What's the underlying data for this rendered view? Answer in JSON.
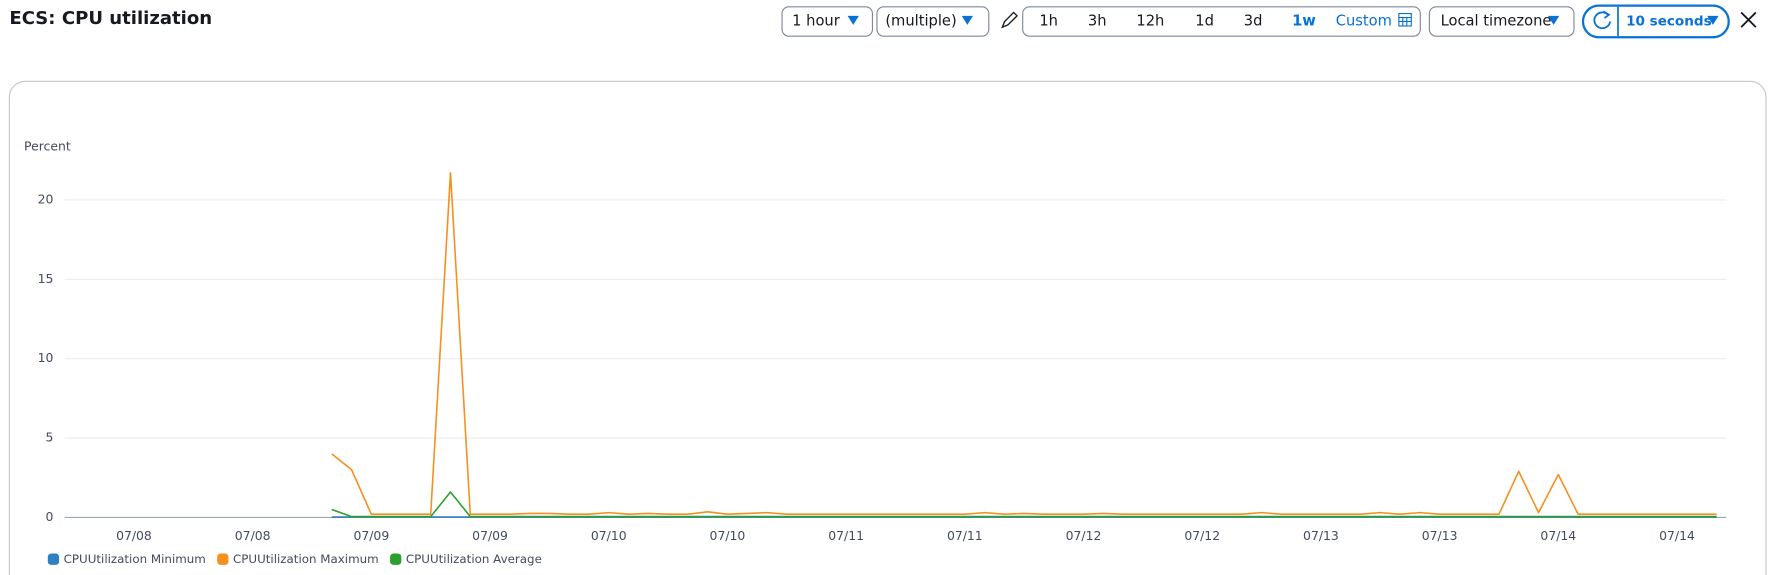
{
  "header": {
    "title": "ECS: CPU utilization",
    "period": "1 hour",
    "statistic": "(multiple)",
    "ranges": [
      "1h",
      "3h",
      "12h",
      "1d",
      "3d",
      "1w"
    ],
    "custom": "Custom",
    "timezone": "Local timezone",
    "refresh": "10 seconds"
  },
  "chart_data": {
    "type": "line",
    "y_label": "Percent",
    "categories": [
      null,
      null,
      null,
      "07/08",
      null,
      null,
      null,
      null,
      null,
      "07/08",
      null,
      null,
      null,
      null,
      null,
      "07/09",
      null,
      null,
      null,
      null,
      null,
      "07/09",
      null,
      null,
      null,
      null,
      null,
      "07/10",
      null,
      null,
      null,
      null,
      null,
      "07/10",
      null,
      null,
      null,
      null,
      null,
      "07/11",
      null,
      null,
      null,
      null,
      null,
      "07/11",
      null,
      null,
      null,
      null,
      null,
      "07/12",
      null,
      null,
      null,
      null,
      null,
      "07/12",
      null,
      null,
      null,
      null,
      null,
      "07/13",
      null,
      null,
      null,
      null,
      null,
      "07/13",
      null,
      null,
      null,
      null,
      null,
      "07/14",
      null,
      null,
      null,
      null,
      null,
      "07/14",
      null,
      null
    ],
    "ylim": [
      0,
      22.5
    ],
    "yticks": [
      0,
      5,
      10,
      15,
      20
    ],
    "grid": true,
    "series": [
      {
        "name": "CPUUtilization Minimum",
        "color": "#2f7fc1",
        "values": [
          null,
          null,
          null,
          null,
          null,
          null,
          null,
          null,
          null,
          null,
          null,
          null,
          null,
          0.02,
          0.02,
          0.02,
          0.02,
          0.02,
          0.02,
          0.02,
          0.02,
          0.02,
          0.02,
          0.02,
          0.02,
          0.02,
          0.02,
          0.02,
          0.02,
          0.02,
          0.02,
          0.02,
          0.02,
          0.02,
          0.02,
          0.02,
          0.02,
          0.02,
          0.02,
          0.02,
          0.02,
          0.02,
          0.02,
          0.02,
          0.02,
          0.02,
          0.02,
          0.02,
          0.02,
          0.02,
          0.02,
          0.02,
          0.02,
          0.02,
          0.02,
          0.02,
          0.02,
          0.02,
          0.02,
          0.02,
          0.02,
          0.02,
          0.02,
          0.02,
          0.02,
          0.02,
          0.02,
          0.02,
          0.02,
          0.02,
          0.02,
          0.02,
          0.02,
          0.02,
          0.02,
          0.02,
          0.02,
          0.02,
          0.02,
          0.02,
          0.02,
          0.02,
          0.02,
          0.02
        ]
      },
      {
        "name": "CPUUtilization Maximum",
        "color": "#f5901e",
        "values": [
          null,
          null,
          null,
          null,
          null,
          null,
          null,
          null,
          null,
          null,
          null,
          null,
          null,
          4.0,
          3.0,
          0.2,
          0.2,
          0.2,
          0.2,
          21.7,
          0.2,
          0.2,
          0.2,
          0.25,
          0.25,
          0.2,
          0.2,
          0.3,
          0.2,
          0.25,
          0.2,
          0.2,
          0.35,
          0.2,
          0.25,
          0.3,
          0.2,
          0.2,
          0.2,
          0.2,
          0.2,
          0.2,
          0.2,
          0.2,
          0.2,
          0.2,
          0.3,
          0.2,
          0.25,
          0.2,
          0.2,
          0.2,
          0.25,
          0.2,
          0.2,
          0.2,
          0.2,
          0.2,
          0.2,
          0.2,
          0.3,
          0.2,
          0.2,
          0.2,
          0.2,
          0.2,
          0.3,
          0.2,
          0.3,
          0.2,
          0.2,
          0.2,
          0.2,
          2.9,
          0.3,
          2.7,
          0.2,
          0.2,
          0.2,
          0.2,
          0.2,
          0.2,
          0.2,
          0.2
        ]
      },
      {
        "name": "CPUUtilization Average",
        "color": "#2ca02c",
        "values": [
          null,
          null,
          null,
          null,
          null,
          null,
          null,
          null,
          null,
          null,
          null,
          null,
          null,
          0.5,
          0.05,
          0.05,
          0.05,
          0.05,
          0.05,
          1.6,
          0.05,
          0.05,
          0.05,
          0.05,
          0.05,
          0.05,
          0.05,
          0.05,
          0.05,
          0.05,
          0.05,
          0.05,
          0.05,
          0.05,
          0.05,
          0.05,
          0.05,
          0.05,
          0.05,
          0.05,
          0.05,
          0.05,
          0.05,
          0.05,
          0.05,
          0.05,
          0.05,
          0.05,
          0.05,
          0.05,
          0.05,
          0.05,
          0.05,
          0.05,
          0.05,
          0.05,
          0.05,
          0.05,
          0.05,
          0.05,
          0.05,
          0.05,
          0.05,
          0.05,
          0.05,
          0.05,
          0.05,
          0.05,
          0.05,
          0.05,
          0.05,
          0.05,
          0.05,
          0.05,
          0.05,
          0.05,
          0.05,
          0.05,
          0.05,
          0.05,
          0.05,
          0.05,
          0.05,
          0.05
        ]
      }
    ]
  }
}
